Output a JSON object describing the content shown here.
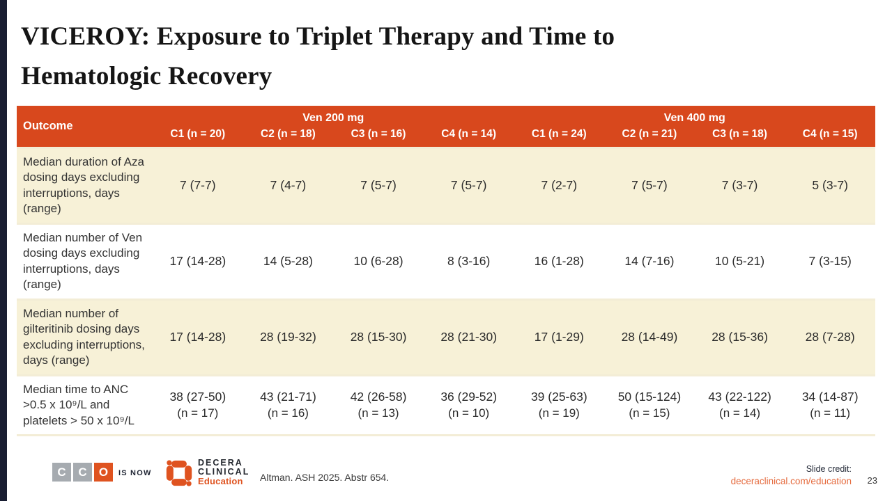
{
  "colors": {
    "header_orange": "#d8481d",
    "row_cream": "#f7f1d7",
    "accent_navy": "#191e32",
    "logo_orange": "#df5320",
    "logo_gray": "#a6abb0",
    "link_orange": "#e56a3d"
  },
  "slide": {
    "title_line1": "VICEROY: Exposure to Triplet Therapy and Time to",
    "title_line2": "Hematologic Recovery"
  },
  "table": {
    "outcome_header": "Outcome",
    "groups": [
      {
        "label": "Ven 200 mg",
        "cols": [
          "C1 (n = 20)",
          "C2 (n = 18)",
          "C3 (n = 16)",
          "C4 (n = 14)"
        ]
      },
      {
        "label": "Ven 400 mg",
        "cols": [
          "C1 (n = 24)",
          "C2 (n = 21)",
          "C3 (n = 18)",
          "C4 (n = 15)"
        ]
      }
    ],
    "rows": [
      {
        "label": "Median duration of Aza dosing days excluding interruptions, days (range)",
        "values": [
          "7 (7-7)",
          "7 (4-7)",
          "7 (5-7)",
          "7 (5-7)",
          "7 (2-7)",
          "7 (5-7)",
          "7 (3-7)",
          "5 (3-7)"
        ]
      },
      {
        "label": "Median number of Ven dosing days excluding interruptions, days (range)",
        "values": [
          "17 (14-28)",
          "14 (5-28)",
          "10 (6-28)",
          "8 (3-16)",
          "16 (1-28)",
          "14 (7-16)",
          "10 (5-21)",
          "7 (3-15)"
        ]
      },
      {
        "label": "Median number of gilteritinib dosing days excluding interruptions, days (range)",
        "values": [
          "17 (14-28)",
          "28 (19-32)",
          "28 (15-30)",
          "28 (21-30)",
          "17 (1-29)",
          "28 (14-49)",
          "28 (15-36)",
          "28 (7-28)"
        ]
      },
      {
        "label": "Median time to ANC >0.5 x 10⁹/L and platelets > 50 x 10⁹/L",
        "values": [
          "38 (27-50)",
          "43 (21-71)",
          "42 (26-58)",
          "36 (29-52)",
          "39 (25-63)",
          "50 (15-124)",
          "43 (22-122)",
          "34 (14-87)"
        ],
        "sub_values": [
          "(n = 17)",
          "(n = 16)",
          "(n = 13)",
          "(n = 10)",
          "(n = 19)",
          "(n = 15)",
          "(n = 14)",
          "(n = 11)"
        ]
      }
    ]
  },
  "footer": {
    "cco_letters": [
      "C",
      "C",
      "O"
    ],
    "is_now": "IS NOW",
    "decera_line1": "DECERA",
    "decera_line2": "CLINICAL",
    "decera_line3": "Education",
    "citation": "Altman. ASH 2025. Abstr 654.",
    "slide_credit_label": "Slide credit:",
    "slide_credit_link": "deceraclinical.com/education",
    "page_number": "23"
  }
}
